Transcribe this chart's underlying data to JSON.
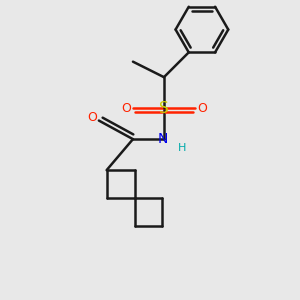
{
  "background_color": "#e8e8e8",
  "bond_color": "#1a1a1a",
  "S_color": "#cccc00",
  "O_color": "#ff2200",
  "N_color": "#0000ee",
  "H_color": "#00aaaa",
  "line_width": 1.8,
  "figsize": [
    3.0,
    3.0
  ],
  "dpi": 100,
  "xlim": [
    0.0,
    1.0
  ],
  "ylim": [
    0.0,
    1.0
  ]
}
